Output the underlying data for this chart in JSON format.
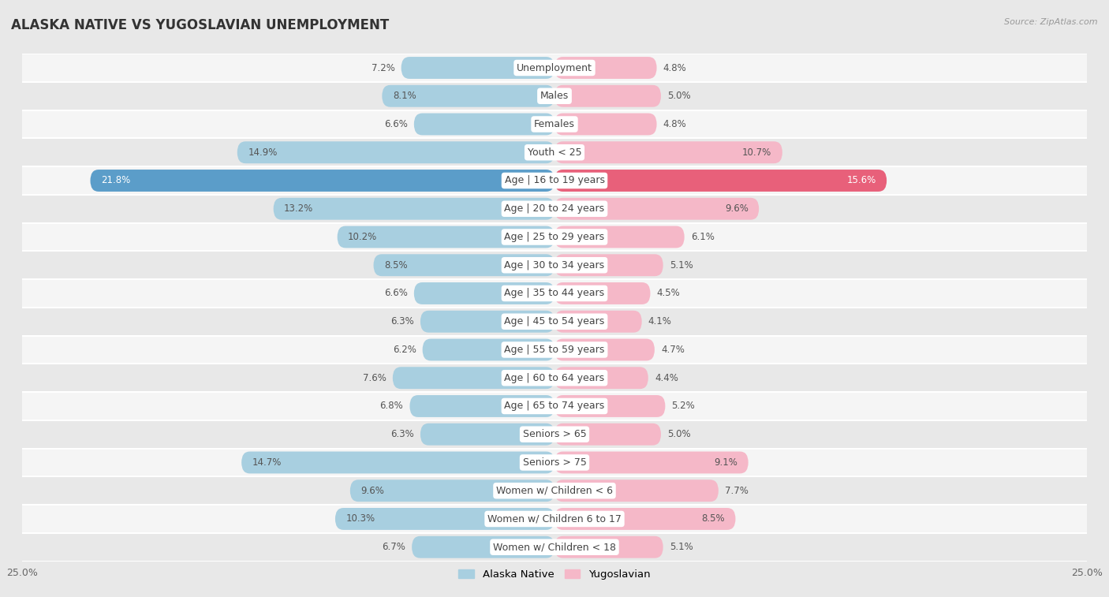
{
  "title": "ALASKA NATIVE VS YUGOSLAVIAN UNEMPLOYMENT",
  "source": "Source: ZipAtlas.com",
  "categories": [
    "Unemployment",
    "Males",
    "Females",
    "Youth < 25",
    "Age | 16 to 19 years",
    "Age | 20 to 24 years",
    "Age | 25 to 29 years",
    "Age | 30 to 34 years",
    "Age | 35 to 44 years",
    "Age | 45 to 54 years",
    "Age | 55 to 59 years",
    "Age | 60 to 64 years",
    "Age | 65 to 74 years",
    "Seniors > 65",
    "Seniors > 75",
    "Women w/ Children < 6",
    "Women w/ Children 6 to 17",
    "Women w/ Children < 18"
  ],
  "alaska_native": [
    7.2,
    8.1,
    6.6,
    14.9,
    21.8,
    13.2,
    10.2,
    8.5,
    6.6,
    6.3,
    6.2,
    7.6,
    6.8,
    6.3,
    14.7,
    9.6,
    10.3,
    6.7
  ],
  "yugoslavian": [
    4.8,
    5.0,
    4.8,
    10.7,
    15.6,
    9.6,
    6.1,
    5.1,
    4.5,
    4.1,
    4.7,
    4.4,
    5.2,
    5.0,
    9.1,
    7.7,
    8.5,
    5.1
  ],
  "alaska_color": "#a8cfe0",
  "yugoslavian_color": "#f5b8c8",
  "alaska_highlight_color": "#5b9dc9",
  "yugoslavian_highlight_color": "#e8607a",
  "bg_color": "#e8e8e8",
  "row_bg_light": "#f5f5f5",
  "row_bg_dark": "#e8e8e8",
  "xlim": 25.0,
  "label_fontsize": 9.0,
  "title_fontsize": 12,
  "value_fontsize": 8.5,
  "bar_height": 0.78
}
